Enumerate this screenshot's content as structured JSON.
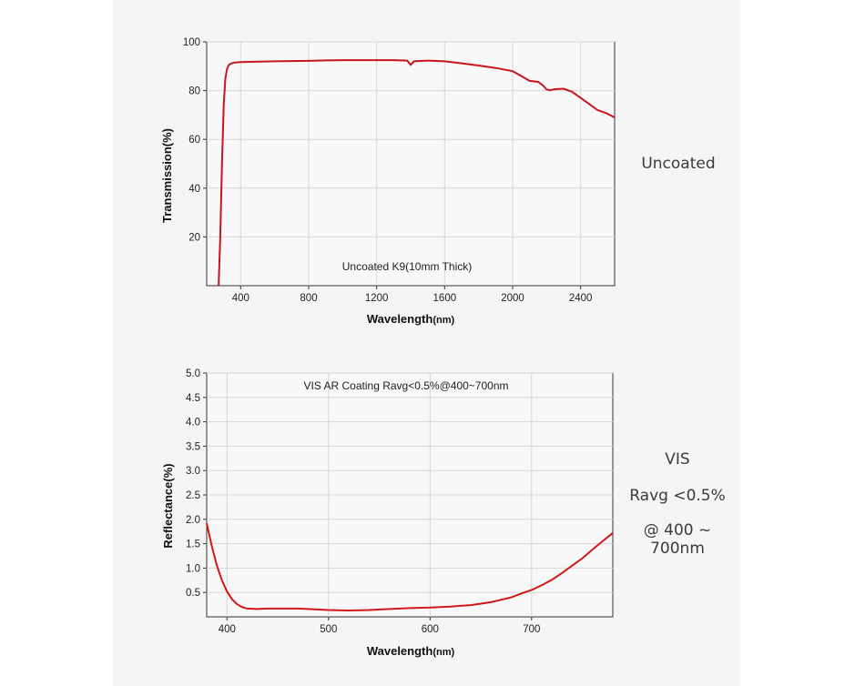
{
  "charts": [
    {
      "type": "line",
      "xlabel_main": "Wavelength",
      "xlabel_unit": "(nm)",
      "ylabel": "Transmission(%)",
      "annotation": "Uncoated K9(10mm Thick)",
      "xlim": [
        200,
        2600
      ],
      "ylim": [
        0,
        100
      ],
      "xticks": [
        400,
        800,
        1200,
        1600,
        2000,
        2400
      ],
      "yticks": [
        20,
        40,
        60,
        80,
        100
      ],
      "line_color": "#c8141c",
      "side_label": "Uncoated"
    },
    {
      "type": "line",
      "xlabel_main": "Wavelength",
      "xlabel_unit": "(nm)",
      "ylabel": "Reflectance(%)",
      "annotation": "VIS AR Coating Ravg<0.5%@400~700nm",
      "xlim": [
        380,
        780
      ],
      "ylim": [
        0,
        5.0
      ],
      "xticks": [
        400,
        500,
        600,
        700
      ],
      "yticks": [
        "0.5",
        "1.0",
        "1.5",
        "2.0",
        "2.5",
        "3.0",
        "3.5",
        "4.0",
        "4.5",
        "5.0"
      ],
      "line_color": "#d01818",
      "side_label_lines": [
        "VIS",
        "Ravg <0.5%",
        "@ 400 ~ 700nm"
      ]
    }
  ],
  "chart_data": [
    {
      "type": "line",
      "title": "Uncoated K9(10mm Thick)",
      "xlabel": "Wavelength(nm)",
      "ylabel": "Transmission(%)",
      "xlim": [
        200,
        2600
      ],
      "ylim": [
        0,
        100
      ],
      "series": [
        {
          "x": [
            270,
            280,
            290,
            300,
            310,
            320,
            330,
            340,
            360,
            400,
            500,
            600,
            800,
            900,
            1000,
            1200,
            1300,
            1380,
            1400,
            1420,
            1500,
            1600,
            1700,
            1800,
            1900,
            2000,
            2050,
            2100,
            2150,
            2180,
            2200,
            2220,
            2250,
            2300,
            2350,
            2400,
            2450,
            2500,
            2550,
            2600
          ],
          "y": [
            0,
            20,
            50,
            74,
            85,
            89,
            90.5,
            91,
            91.5,
            91.7,
            91.9,
            92.0,
            92.2,
            92.4,
            92.5,
            92.5,
            92.5,
            92.3,
            90.6,
            92.0,
            92.3,
            92.0,
            91.2,
            90.3,
            89.3,
            88.0,
            86.0,
            84.0,
            83.6,
            82.0,
            80.5,
            80.2,
            80.6,
            80.8,
            79.5,
            77.0,
            74.5,
            72.0,
            70.8,
            69.0
          ]
        }
      ]
    },
    {
      "type": "line",
      "title": "VIS AR Coating Ravg<0.5%@400~700nm",
      "xlabel": "Wavelength(nm)",
      "ylabel": "Reflectance(%)",
      "xlim": [
        380,
        780
      ],
      "ylim": [
        0,
        5.0
      ],
      "series": [
        {
          "x": [
            380,
            385,
            390,
            395,
            400,
            405,
            410,
            415,
            420,
            430,
            440,
            450,
            460,
            470,
            480,
            500,
            520,
            540,
            560,
            580,
            600,
            620,
            640,
            660,
            680,
            690,
            700,
            710,
            720,
            730,
            740,
            750,
            760,
            770,
            780
          ],
          "y": [
            1.92,
            1.45,
            1.05,
            0.75,
            0.52,
            0.36,
            0.26,
            0.2,
            0.17,
            0.16,
            0.17,
            0.17,
            0.17,
            0.17,
            0.16,
            0.14,
            0.13,
            0.14,
            0.16,
            0.18,
            0.19,
            0.21,
            0.24,
            0.3,
            0.4,
            0.48,
            0.55,
            0.65,
            0.76,
            0.9,
            1.05,
            1.2,
            1.38,
            1.55,
            1.72
          ]
        }
      ]
    }
  ]
}
